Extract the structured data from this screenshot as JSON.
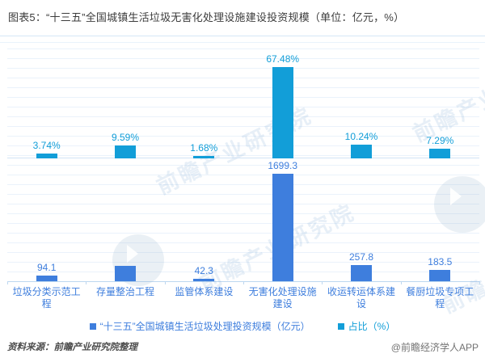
{
  "title": "图表5：“十三五”全国城镇生活垃圾无害化处理设施建设投资规模（单位：亿元，%）",
  "chart_data": {
    "type": "bar",
    "categories": [
      "垃圾分类示范工程",
      "存量整治工程",
      "监管体系建设",
      "无害化处理设施建设",
      "收运转运体系建设",
      "餐厨垃圾专项工程"
    ],
    "series": [
      {
        "name": "“十三五”全国城镇生活垃圾处理投资规模（亿元）",
        "unit": "亿元",
        "color": "#3e7edd",
        "values": [
          94.1,
          241.5,
          42.3,
          1699.3,
          257.8,
          183.5
        ],
        "value_labels": [
          "94.1",
          "",
          "42.3",
          "1699.3",
          "257.8",
          "183.5"
        ]
      },
      {
        "name": "占比（%）",
        "unit": "%",
        "color": "#129ed8",
        "values": [
          3.74,
          9.59,
          1.68,
          67.48,
          10.24,
          7.29
        ],
        "value_labels": [
          "3.74%",
          "9.59%",
          "1.68%",
          "67.48%",
          "10.24%",
          "7.29%"
        ]
      }
    ],
    "legend_position": "bottom",
    "gridlines": true,
    "y_axis_tick_labels_visible": false
  },
  "watermark": {
    "text": "前瞻产业研究院"
  },
  "footer": {
    "source": "资料来源：前瞻产业研究院整理",
    "credit": "@前瞻经济学人APP"
  }
}
